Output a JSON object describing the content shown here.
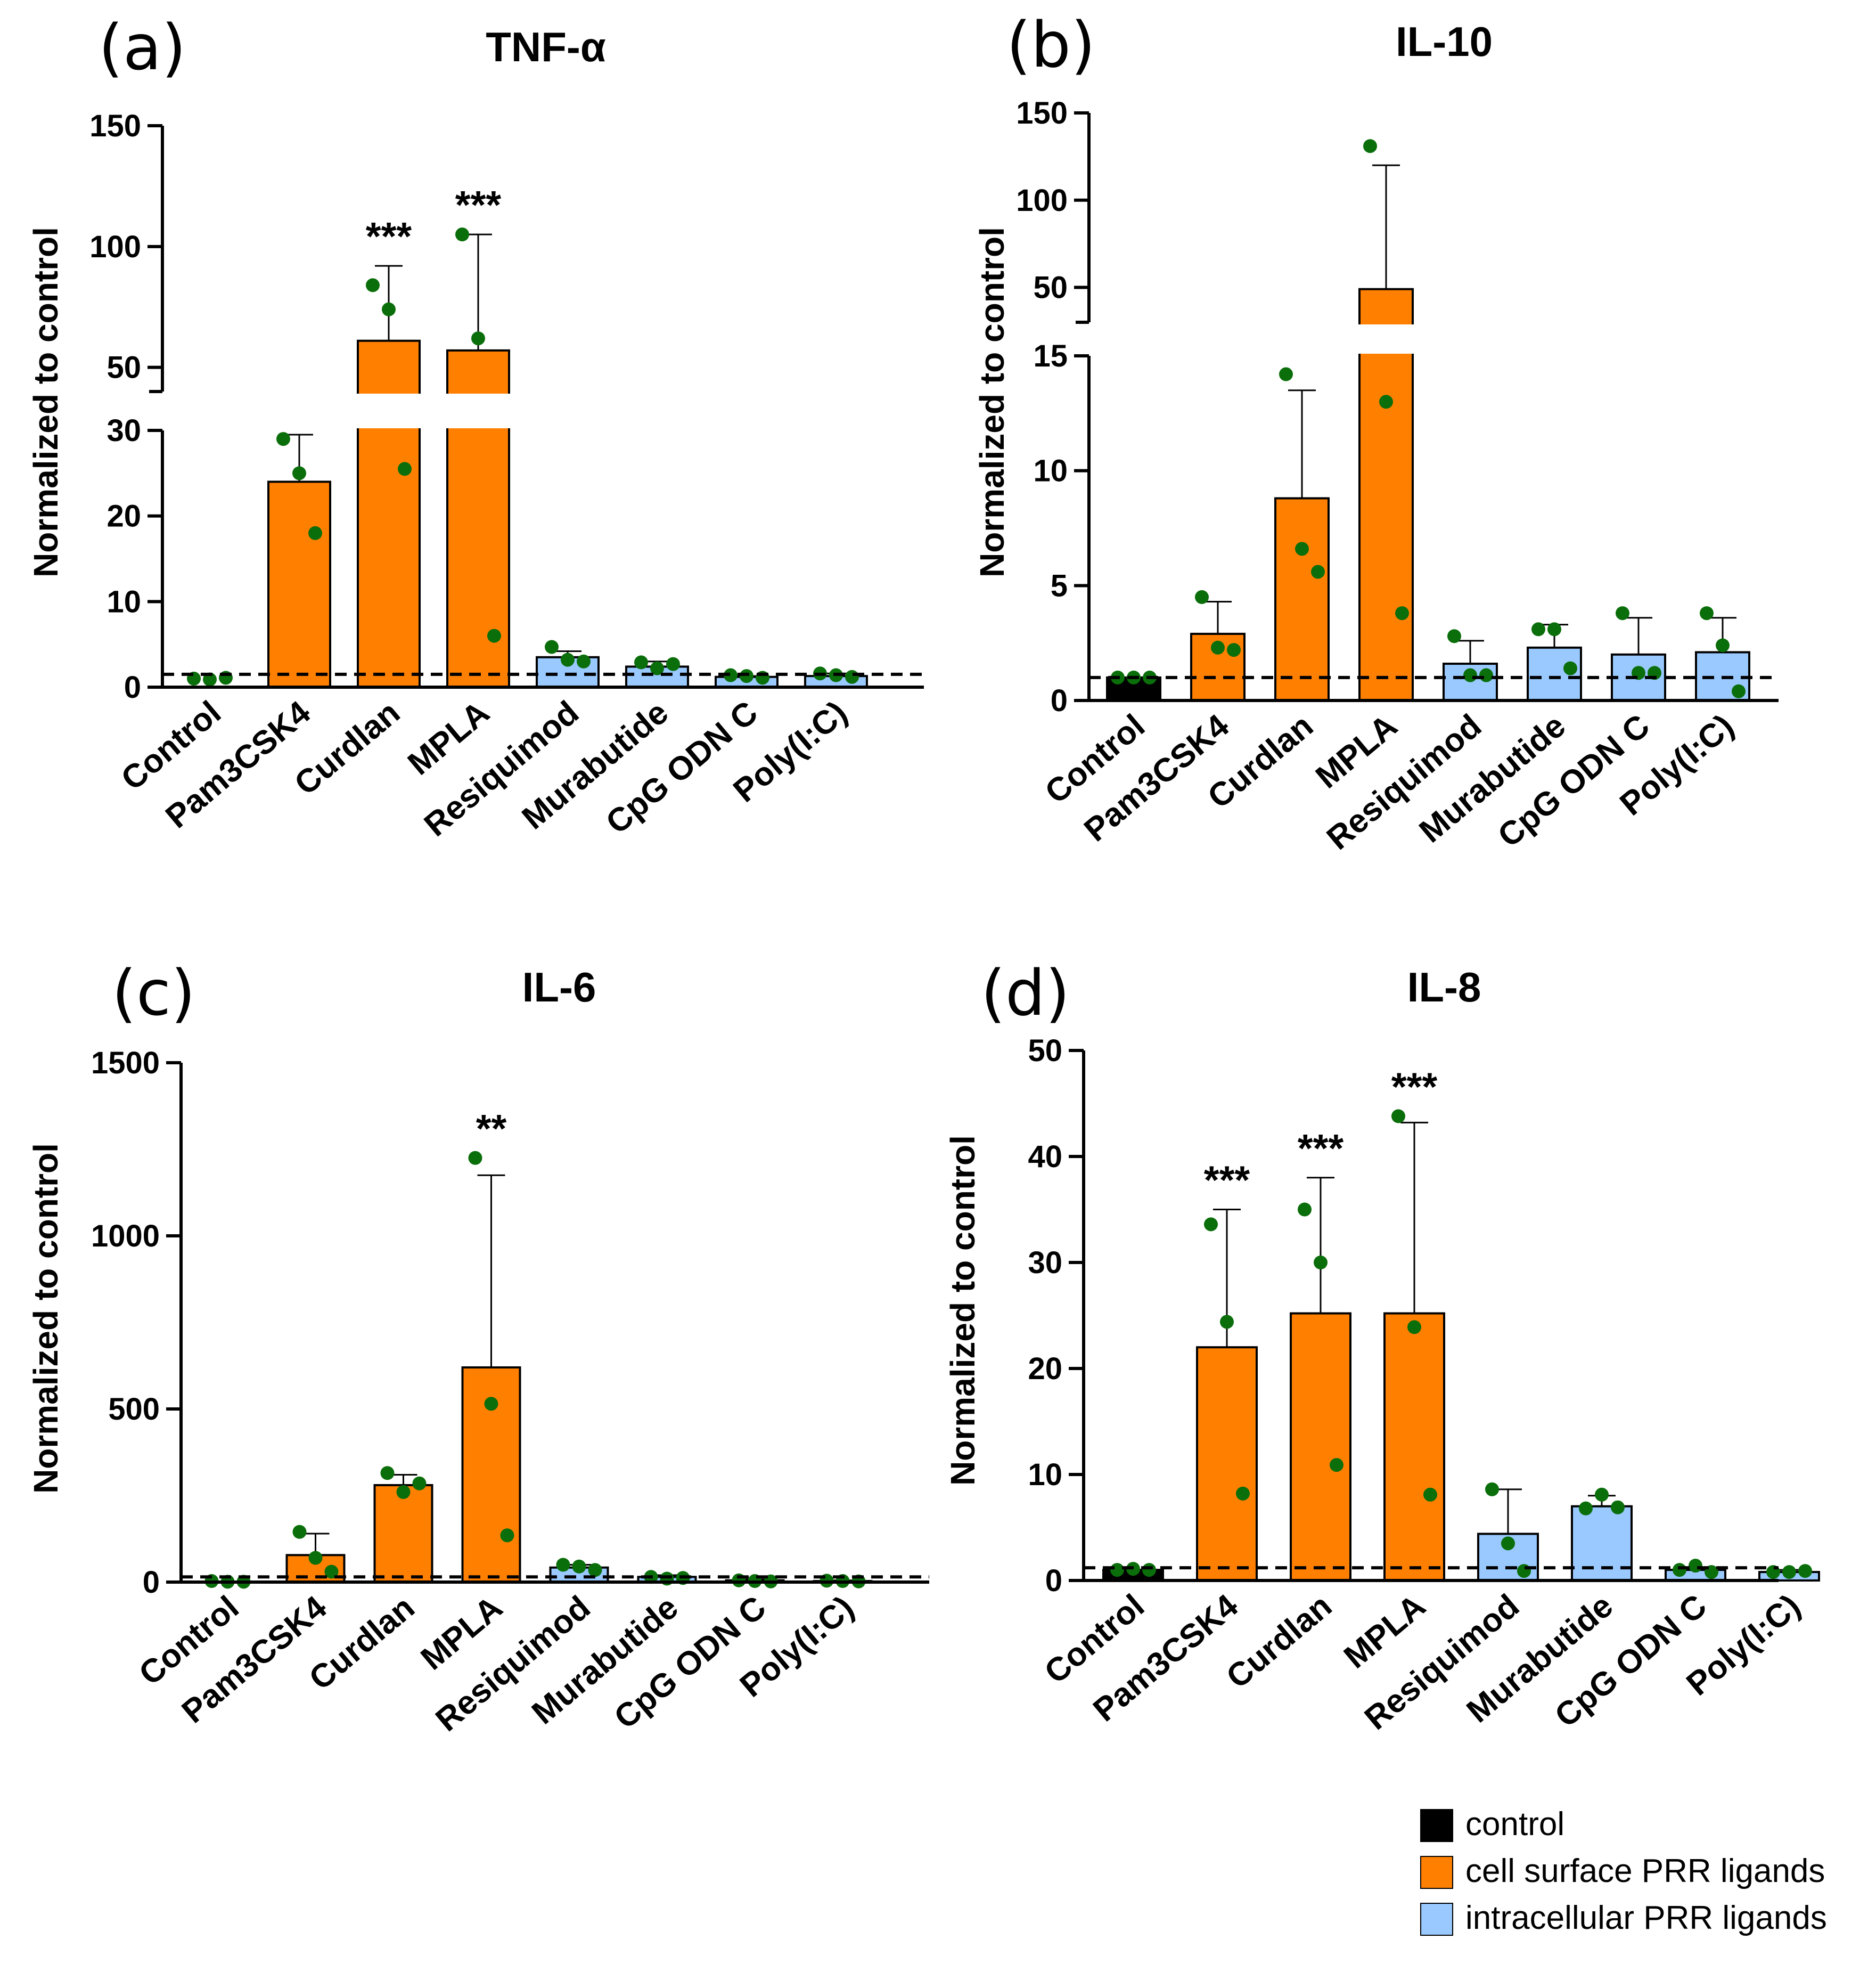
{
  "ylabel": "Normalized to control",
  "colors": {
    "control": "#000000",
    "surface": "#FF8000",
    "intracellular": "#99C9FF",
    "dot": "#0A6E0A"
  },
  "legend": [
    {
      "label": "control",
      "color": "#000000"
    },
    {
      "label": "cell surface PRR ligands",
      "color": "#FF8000"
    },
    {
      "label": "intracellular PRR ligands",
      "color": "#99C9FF"
    }
  ],
  "chart_data": [
    {
      "panel": "(a)",
      "title": "TNF-α",
      "type": "bar",
      "categories": [
        "Control",
        "Pam3CSK4",
        "Curdlan",
        "MPLA",
        "Resiquimod",
        "Murabutide",
        "CpG ODN C",
        "Poly(I:C)"
      ],
      "groups": [
        "control",
        "surface",
        "surface",
        "surface",
        "intracellular",
        "intracellular",
        "intracellular",
        "intracellular"
      ],
      "means": [
        1,
        24,
        61,
        57,
        3.5,
        2.4,
        1.2,
        1.3
      ],
      "sd_upper": [
        1,
        29.5,
        92,
        105,
        4.2,
        3,
        1.3,
        1.6
      ],
      "points": [
        [
          1,
          0.9,
          1.1
        ],
        [
          29,
          25,
          18
        ],
        [
          84,
          74,
          25.5
        ],
        [
          105,
          62,
          6
        ],
        [
          4.7,
          3.2,
          3.0
        ],
        [
          2.9,
          2.2,
          2.7
        ],
        [
          1.4,
          1.3,
          1.1
        ],
        [
          1.6,
          1.4,
          1.2
        ]
      ],
      "significance": [
        "",
        "",
        "***",
        "***",
        "",
        "",
        "",
        ""
      ],
      "control_line": 1.5,
      "show_control_bar": false,
      "axis": {
        "lower_range": [
          0,
          30
        ],
        "lower_ticks": [
          "0",
          "10",
          "20",
          "30"
        ],
        "upper_range": [
          40,
          150
        ],
        "upper_ticks": [
          "50",
          "100",
          "150"
        ]
      }
    },
    {
      "panel": "(b)",
      "title": "IL-10",
      "type": "bar",
      "categories": [
        "Control",
        "Pam3CSK4",
        "Curdlan",
        "MPLA",
        "Resiquimod",
        "Murabutide",
        "CpG ODN C",
        "Poly(I:C)"
      ],
      "groups": [
        "control",
        "surface",
        "surface",
        "surface",
        "intracellular",
        "intracellular",
        "intracellular",
        "intracellular"
      ],
      "means": [
        1,
        2.9,
        8.8,
        49,
        1.6,
        2.3,
        2.0,
        2.1
      ],
      "sd_upper": [
        1,
        4.3,
        13.5,
        120,
        2.6,
        3.3,
        3.6,
        3.6
      ],
      "points": [
        [
          1.0,
          1.0,
          1.0
        ],
        [
          4.5,
          2.3,
          2.2
        ],
        [
          14.2,
          6.6,
          5.6
        ],
        [
          131,
          13,
          3.8
        ],
        [
          2.8,
          1.1,
          1.1
        ],
        [
          3.1,
          3.1,
          1.4
        ],
        [
          3.8,
          1.2,
          1.2
        ],
        [
          3.8,
          2.4,
          0.4
        ]
      ],
      "significance": [
        "",
        "",
        "",
        "",
        "",
        "",
        "",
        ""
      ],
      "control_line": 1.0,
      "show_control_bar": true,
      "axis": {
        "lower_range": [
          0,
          15
        ],
        "lower_ticks": [
          "0",
          "5",
          "10",
          "15"
        ],
        "upper_range": [
          30,
          150
        ],
        "upper_ticks": [
          "50",
          "100",
          "150"
        ]
      }
    },
    {
      "panel": "(c)",
      "title": "IL-6",
      "type": "bar",
      "categories": [
        "Control",
        "Pam3CSK4",
        "Curdlan",
        "MPLA",
        "Resiquimod",
        "Murabutide",
        "CpG ODN C",
        "Poly(I:C)"
      ],
      "groups": [
        "control",
        "surface",
        "surface",
        "surface",
        "intracellular",
        "intracellular",
        "intracellular",
        "intracellular"
      ],
      "means": [
        2,
        78,
        280,
        620,
        42,
        15,
        5,
        3
      ],
      "sd_upper": [
        2,
        140,
        310,
        1175,
        50,
        20,
        8,
        5
      ],
      "points": [
        [
          3,
          1,
          1
        ],
        [
          145,
          70,
          30
        ],
        [
          315,
          260,
          285
        ],
        [
          1225,
          515,
          135
        ],
        [
          50,
          45,
          35
        ],
        [
          15,
          10,
          12
        ],
        [
          5,
          3,
          2
        ],
        [
          4,
          3,
          2
        ]
      ],
      "significance": [
        "",
        "",
        "",
        "**",
        "",
        "",
        "",
        ""
      ],
      "control_line": 15,
      "show_control_bar": false,
      "axis": {
        "range": [
          0,
          1500
        ],
        "ticks": [
          "0",
          "500",
          "1000",
          "1500"
        ]
      }
    },
    {
      "panel": "(d)",
      "title": "IL-8",
      "type": "bar",
      "categories": [
        "Control",
        "Pam3CSK4",
        "Curdlan",
        "MPLA",
        "Resiquimod",
        "Murabutide",
        "CpG ODN C",
        "Poly(I:C)"
      ],
      "groups": [
        "control",
        "surface",
        "surface",
        "surface",
        "intracellular",
        "intracellular",
        "intracellular",
        "intracellular"
      ],
      "means": [
        1,
        22,
        25.2,
        25.2,
        4.4,
        7.0,
        1.0,
        0.8
      ],
      "sd_upper": [
        1,
        35,
        38,
        43.2,
        8.6,
        8.0,
        1.2,
        1.0
      ],
      "points": [
        [
          1.0,
          1.1,
          1.0
        ],
        [
          33.6,
          24.4,
          8.2
        ],
        [
          35.0,
          30.0,
          10.9
        ],
        [
          43.8,
          23.9,
          8.1
        ],
        [
          8.6,
          3.5,
          0.9
        ],
        [
          6.8,
          8.1,
          6.9
        ],
        [
          1.0,
          1.4,
          0.8
        ],
        [
          0.8,
          0.8,
          0.9
        ]
      ],
      "significance": [
        "",
        "***",
        "***",
        "***",
        "",
        "",
        "",
        ""
      ],
      "control_line": 1.2,
      "show_control_bar": true,
      "axis": {
        "range": [
          0,
          50
        ],
        "ticks": [
          "0",
          "10",
          "20",
          "30",
          "40",
          "50"
        ]
      }
    }
  ]
}
